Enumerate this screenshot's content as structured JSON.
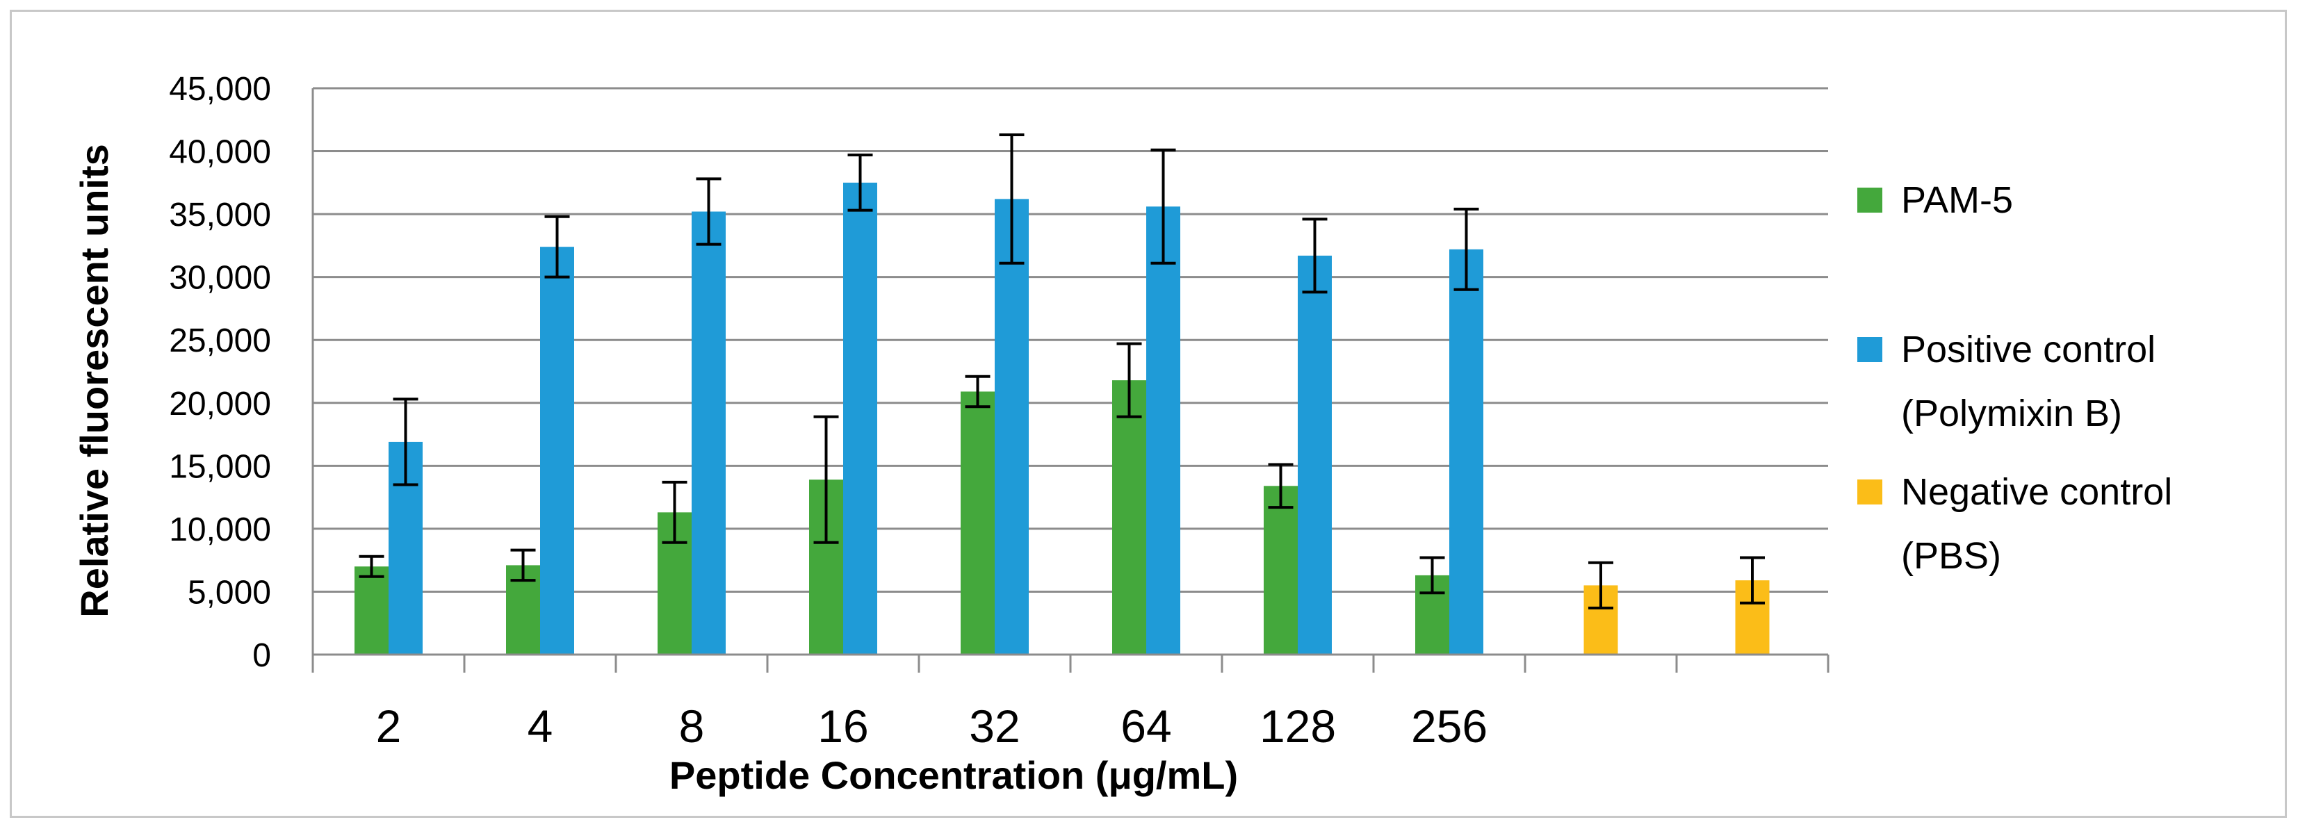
{
  "chart_data": {
    "type": "bar",
    "title": "",
    "xlabel": "Peptide Concentration (μg/mL)",
    "ylabel": "Relative fluorescent units",
    "ylim": [
      0,
      45000
    ],
    "y_ticks": [
      "0",
      "5,000",
      "10,000",
      "15,000",
      "20,000",
      "25,000",
      "30,000",
      "35,000",
      "40,000",
      "45,000"
    ],
    "categories": [
      "2",
      "4",
      "8",
      "16",
      "32",
      "64",
      "128",
      "256",
      "",
      ""
    ],
    "grid": true,
    "legend_position": "right",
    "series": [
      {
        "name": "PAM-5",
        "color": "#44a83c",
        "values": [
          7000,
          7100,
          11300,
          13900,
          20900,
          21800,
          13400,
          6300,
          null,
          null
        ],
        "errors": [
          800,
          1200,
          2400,
          5000,
          1200,
          2900,
          1700,
          1400,
          null,
          null
        ]
      },
      {
        "name": "Positive control (Polymixin B)",
        "color": "#1f9bd7",
        "values": [
          16900,
          32400,
          35200,
          37500,
          36200,
          35600,
          31700,
          32200,
          null,
          null
        ],
        "errors": [
          3400,
          2400,
          2600,
          2200,
          5100,
          4500,
          2900,
          3200,
          null,
          null
        ]
      },
      {
        "name": "Negative control (PBS)",
        "color": "#fbbd18",
        "values": [
          null,
          null,
          null,
          null,
          null,
          null,
          null,
          null,
          5500,
          5900
        ],
        "errors": [
          null,
          null,
          null,
          null,
          null,
          null,
          null,
          null,
          1800,
          1800
        ]
      }
    ],
    "legend": [
      {
        "lines": [
          "PAM-5"
        ],
        "color": "#44a83c"
      },
      {
        "lines": [
          "Positive control",
          "(Polymixin B)"
        ],
        "color": "#1f9bd7"
      },
      {
        "lines": [
          "Negative control",
          "(PBS)"
        ],
        "color": "#fbbd18"
      }
    ]
  }
}
